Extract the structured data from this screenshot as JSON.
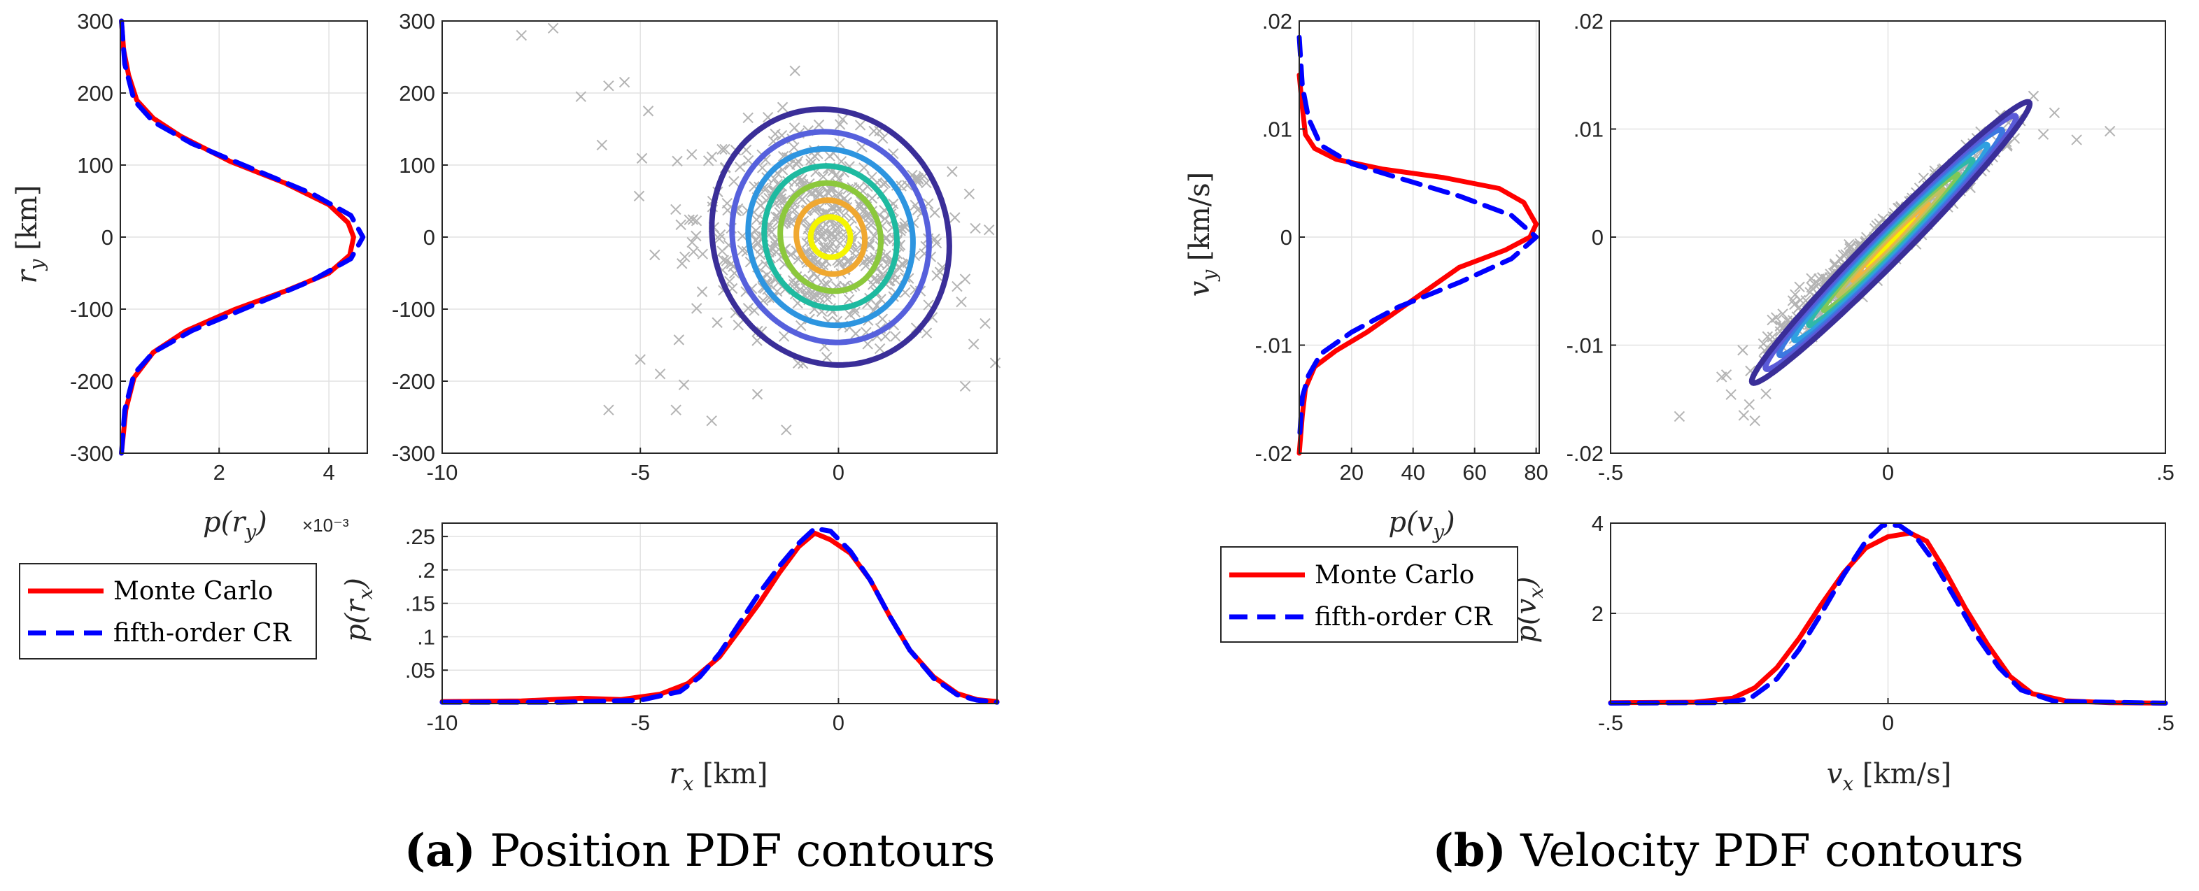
{
  "chart_data": [
    {
      "id": "pos_marg_y",
      "type": "line",
      "orientation": "vertical",
      "xlabel": "p(r_y)",
      "x_multiplier": "×10⁻³",
      "ylabel": "r_y [km]",
      "xlim": [
        0.2,
        4.7
      ],
      "ylim": [
        -300,
        300
      ],
      "xticks": [
        2,
        4
      ],
      "yticks": [
        -300,
        -200,
        -100,
        0,
        100,
        200,
        300
      ],
      "grid": true,
      "series": [
        {
          "name": "Monte Carlo",
          "color": "#ff0000",
          "style": "solid",
          "x": [
            0.22,
            0.26,
            0.35,
            0.5,
            0.8,
            1.3,
            2.2,
            3.2,
            4.0,
            4.35,
            4.45,
            4.38,
            4.0,
            3.2,
            2.3,
            1.4,
            0.8,
            0.45,
            0.3,
            0.22
          ],
          "y": [
            300,
            260,
            225,
            190,
            165,
            140,
            105,
            75,
            45,
            20,
            0,
            -25,
            -50,
            -75,
            -100,
            -130,
            -160,
            -195,
            -240,
            -300
          ]
        },
        {
          "name": "fifth-order CR",
          "color": "#0000ff",
          "style": "dashed",
          "x": [
            0.22,
            0.28,
            0.45,
            0.8,
            1.5,
            2.6,
            3.7,
            4.4,
            4.62,
            4.4,
            3.7,
            2.6,
            1.5,
            0.8,
            0.45,
            0.28,
            0.22
          ],
          "y": [
            300,
            240,
            190,
            160,
            130,
            95,
            60,
            30,
            0,
            -30,
            -60,
            -95,
            -130,
            -160,
            -190,
            -240,
            -300
          ]
        }
      ]
    },
    {
      "id": "pos_scatter",
      "type": "scatter",
      "xlim": [
        -10,
        4
      ],
      "ylim": [
        -300,
        300
      ],
      "xticks": [
        -10,
        -5,
        0
      ],
      "yticks": [
        -300,
        -200,
        -100,
        0,
        100,
        200,
        300
      ],
      "grid": true,
      "scatter": {
        "center": [
          -0.4,
          0
        ],
        "sx": 1.6,
        "sy": 70,
        "rho": -0.2,
        "n": 560,
        "color": "#b4b4b4"
      },
      "outliers": [
        [
          -8,
          280
        ],
        [
          -7.2,
          290
        ],
        [
          -5.8,
          210
        ],
        [
          -5.4,
          215
        ],
        [
          -6.5,
          195
        ],
        [
          -4.8,
          175
        ],
        [
          -5,
          -170
        ],
        [
          -5.8,
          -240
        ],
        [
          -4.1,
          -240
        ],
        [
          -3.2,
          -255
        ],
        [
          -3.9,
          -205
        ],
        [
          -4.5,
          -190
        ],
        [
          3.3,
          60
        ],
        [
          3.8,
          10
        ],
        [
          3.1,
          -90
        ],
        [
          3.7,
          -120
        ]
      ],
      "contours": [
        {
          "rx": 0.5,
          "ry": 28,
          "color": "#f5f500"
        },
        {
          "rx": 0.85,
          "ry": 52,
          "color": "#f0a830"
        },
        {
          "rx": 1.25,
          "ry": 76,
          "color": "#8cc83c"
        },
        {
          "rx": 1.65,
          "ry": 100,
          "color": "#1ebaa0"
        },
        {
          "rx": 2.05,
          "ry": 124,
          "color": "#2d95e0"
        },
        {
          "rx": 2.45,
          "ry": 148,
          "color": "#5660dc"
        },
        {
          "rx": 2.95,
          "ry": 180,
          "color": "#3a2e98"
        }
      ],
      "contour_center": [
        -0.2,
        0
      ],
      "contour_angle_deg": -22
    },
    {
      "id": "pos_marg_x",
      "type": "line",
      "xlabel": "r_x [km]",
      "ylabel": "p(r_x)",
      "xlim": [
        -10,
        4
      ],
      "ylim": [
        0,
        0.27
      ],
      "xticks": [
        -10,
        -5,
        0
      ],
      "yticks": [
        0.05,
        0.1,
        0.15,
        0.2,
        0.25
      ],
      "grid": true,
      "series": [
        {
          "name": "Monte Carlo",
          "color": "#ff0000",
          "style": "solid",
          "x": [
            -10,
            -8,
            -6.5,
            -5.5,
            -4.5,
            -3.8,
            -3,
            -2.5,
            -2,
            -1.5,
            -1,
            -0.6,
            -0.2,
            0.3,
            0.8,
            1.3,
            1.8,
            2.4,
            3,
            3.5,
            4
          ],
          "y": [
            0.003,
            0.004,
            0.008,
            0.006,
            0.014,
            0.03,
            0.07,
            0.11,
            0.15,
            0.195,
            0.235,
            0.255,
            0.245,
            0.225,
            0.185,
            0.13,
            0.08,
            0.04,
            0.015,
            0.006,
            0.003
          ]
        },
        {
          "name": "fifth-order CR",
          "color": "#0000ff",
          "style": "dashed",
          "x": [
            -10,
            -7,
            -5,
            -4,
            -3.5,
            -3,
            -2.5,
            -2,
            -1.5,
            -1,
            -0.6,
            -0.2,
            0.3,
            0.8,
            1.3,
            1.8,
            2.4,
            3,
            3.5,
            4
          ],
          "y": [
            0.002,
            0.002,
            0.005,
            0.018,
            0.04,
            0.075,
            0.12,
            0.165,
            0.205,
            0.24,
            0.262,
            0.258,
            0.228,
            0.185,
            0.13,
            0.08,
            0.038,
            0.013,
            0.005,
            0.002
          ]
        }
      ]
    },
    {
      "id": "vel_marg_y",
      "type": "line",
      "orientation": "vertical",
      "xlabel": "p(v_y)",
      "ylabel": "v_y [km/s]",
      "xlim": [
        3,
        81
      ],
      "ylim": [
        -0.02,
        0.02
      ],
      "xticks": [
        20,
        40,
        60,
        80
      ],
      "yticks": [
        -0.02,
        -0.01,
        0,
        0.01,
        0.02
      ],
      "grid": true,
      "series": [
        {
          "name": "Monte Carlo",
          "color": "#ff0000",
          "style": "solid",
          "x": [
            3,
            4,
            5,
            8,
            15,
            30,
            50,
            68,
            76,
            80,
            78,
            70,
            55,
            45,
            35,
            25,
            15,
            8,
            5,
            4,
            3
          ],
          "y": [
            0.015,
            0.012,
            0.0095,
            0.0082,
            0.0072,
            0.0063,
            0.0055,
            0.0045,
            0.0032,
            0.0012,
            0,
            -0.0012,
            -0.0028,
            -0.0048,
            -0.0068,
            -0.0088,
            -0.0105,
            -0.012,
            -0.014,
            -0.0165,
            -0.02
          ]
        },
        {
          "name": "fifth-order CR",
          "color": "#0000ff",
          "style": "dashed",
          "x": [
            3,
            4,
            6,
            10,
            20,
            35,
            55,
            72,
            80,
            72,
            55,
            35,
            20,
            10,
            6,
            4,
            3
          ],
          "y": [
            0.0185,
            0.014,
            0.011,
            0.0085,
            0.0068,
            0.0055,
            0.0038,
            0.002,
            0,
            -0.002,
            -0.0042,
            -0.0065,
            -0.0088,
            -0.0108,
            -0.0128,
            -0.0148,
            -0.019
          ]
        }
      ]
    },
    {
      "id": "vel_scatter",
      "type": "scatter",
      "xlim": [
        -0.5,
        0.5
      ],
      "ylim": [
        -0.02,
        0.02
      ],
      "xticks": [
        -0.5,
        0,
        0.5
      ],
      "yticks": [
        -0.02,
        -0.01,
        0,
        0.01,
        0.02
      ],
      "grid": true,
      "scatter": {
        "center": [
          0,
          0
        ],
        "sx": 0.1,
        "sy": 0.0046,
        "rho": 0.97,
        "n": 520,
        "color": "#b4b4b4"
      },
      "outliers": [
        [
          -0.25,
          -0.0155
        ],
        [
          -0.26,
          -0.0165
        ],
        [
          -0.24,
          -0.017
        ],
        [
          -0.22,
          -0.0145
        ],
        [
          0.3,
          0.0115
        ],
        [
          0.34,
          0.009
        ],
        [
          0.4,
          0.0098
        ],
        [
          0.28,
          0.0095
        ]
      ],
      "contours": [
        {
          "s": 0.2,
          "color": "#f5f500"
        },
        {
          "s": 0.33,
          "color": "#f0b440"
        },
        {
          "s": 0.46,
          "color": "#c0c060"
        },
        {
          "s": 0.59,
          "color": "#80c858"
        },
        {
          "s": 0.72,
          "color": "#30b8a8"
        },
        {
          "s": 0.85,
          "color": "#2fa0e0"
        },
        {
          "s": 0.98,
          "color": "#3c78e0"
        },
        {
          "s": 1.1,
          "color": "#5a5ad8"
        },
        {
          "s": 1.22,
          "color": "#3a2e98"
        }
      ],
      "contour_center": [
        0.005,
        -0.0005
      ],
      "contour_axes": {
        "u": [
          0.205,
          0.0106
        ],
        "v": [
          -0.012,
          0.0012
        ]
      }
    },
    {
      "id": "vel_marg_x",
      "type": "line",
      "xlabel": "v_x [km/s]",
      "ylabel": "p(v_x)",
      "xlim": [
        -0.5,
        0.5
      ],
      "ylim": [
        0,
        4
      ],
      "xticks": [
        -0.5,
        0,
        0.5
      ],
      "yticks": [
        2,
        4
      ],
      "grid": true,
      "series": [
        {
          "name": "Monte Carlo",
          "color": "#ff0000",
          "style": "solid",
          "x": [
            -0.5,
            -0.35,
            -0.28,
            -0.24,
            -0.2,
            -0.16,
            -0.12,
            -0.08,
            -0.04,
            0,
            0.04,
            0.07,
            0.1,
            0.14,
            0.18,
            0.22,
            0.26,
            0.32,
            0.4,
            0.5
          ],
          "y": [
            0.02,
            0.03,
            0.12,
            0.35,
            0.8,
            1.45,
            2.2,
            2.9,
            3.45,
            3.7,
            3.78,
            3.6,
            3.0,
            2.1,
            1.3,
            0.6,
            0.22,
            0.06,
            0.02,
            0.01
          ]
        },
        {
          "name": "fifth-order CR",
          "color": "#0000ff",
          "style": "dashed",
          "x": [
            -0.5,
            -0.3,
            -0.25,
            -0.2,
            -0.16,
            -0.12,
            -0.08,
            -0.04,
            -0.01,
            0.02,
            0.05,
            0.08,
            0.12,
            0.16,
            0.2,
            0.24,
            0.3,
            0.5
          ],
          "y": [
            0.01,
            0.02,
            0.1,
            0.55,
            1.2,
            2.0,
            2.85,
            3.6,
            3.95,
            3.95,
            3.7,
            3.2,
            2.35,
            1.5,
            0.8,
            0.3,
            0.05,
            0.01
          ]
        }
      ]
    }
  ],
  "legend": {
    "monte_carlo": "Monte Carlo",
    "cr": "fifth-order CR"
  },
  "captions": {
    "a_prefix": "(a)",
    "a_text": "Position PDF contours",
    "b_prefix": "(b)",
    "b_text": "Velocity PDF contours"
  }
}
